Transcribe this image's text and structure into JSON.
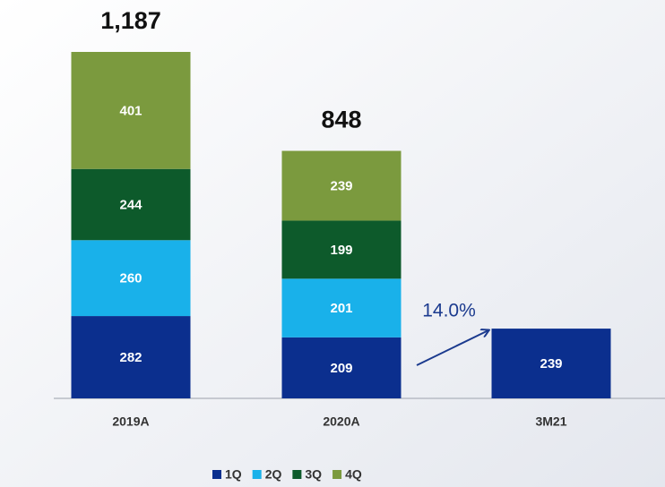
{
  "chart_data": {
    "type": "stacked-bar",
    "categories": [
      "2019A",
      "2020A",
      "3M21"
    ],
    "series": [
      {
        "name": "1Q",
        "color": "#0b2f8e",
        "values": [
          282,
          209,
          239
        ]
      },
      {
        "name": "2Q",
        "color": "#19b1ea",
        "values": [
          260,
          201,
          null
        ]
      },
      {
        "name": "3Q",
        "color": "#0d5a2b",
        "values": [
          244,
          199,
          null
        ]
      },
      {
        "name": "4Q",
        "color": "#7b9a3e",
        "values": [
          401,
          239,
          null
        ]
      }
    ],
    "totals": [
      1187,
      848,
      null
    ],
    "total_labels": [
      "1,187",
      "848",
      null
    ],
    "annotation": "14.0%",
    "annotation_color": "#1b3a8e"
  }
}
